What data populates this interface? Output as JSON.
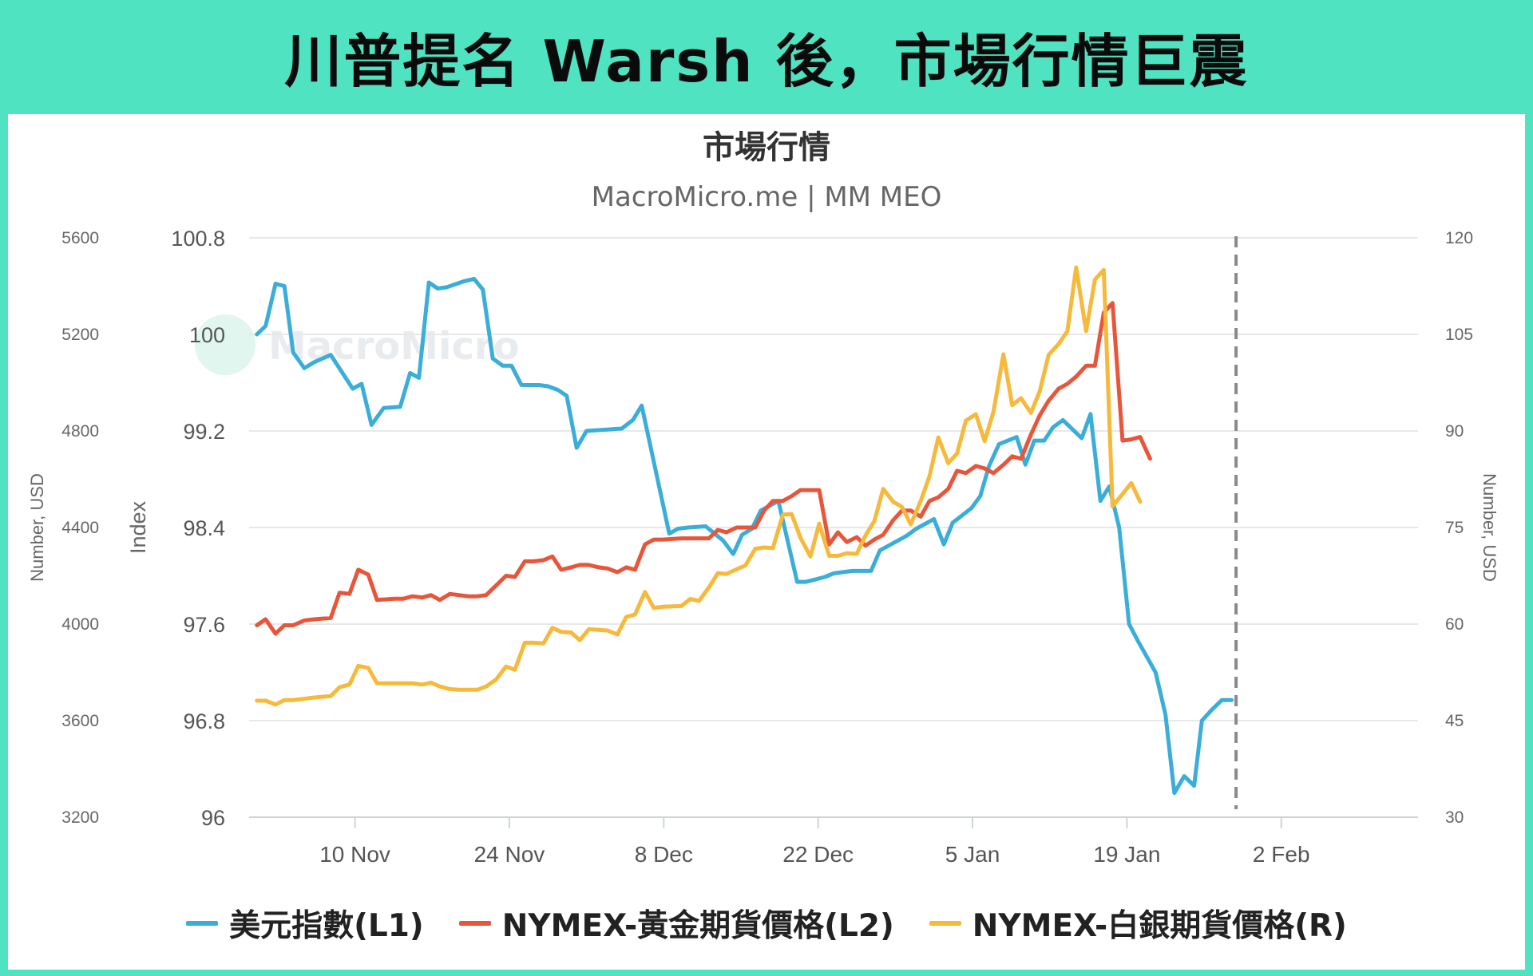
{
  "page_title": "川普提名 Warsh 後，市場行情巨震",
  "chart_data": {
    "type": "line",
    "title": "市場行情",
    "subtitle": "MacroMicro.me | MM MEO",
    "watermark": "MacroMicro",
    "axes": {
      "left_outer": {
        "label": "Number, USD",
        "range": [
          3200,
          5600
        ],
        "ticks": [
          "5600",
          "5200",
          "4800",
          "4400",
          "4000",
          "3600",
          "3200"
        ]
      },
      "left_inner": {
        "label": "Index",
        "range": [
          96,
          100.8
        ],
        "ticks": [
          "100.8",
          "100",
          "99.2",
          "98.4",
          "97.6",
          "96.8",
          "96"
        ]
      },
      "right": {
        "label": "Number, USD",
        "range": [
          30,
          120
        ],
        "ticks": [
          "120",
          "105",
          "90",
          "75",
          "60",
          "45",
          "30"
        ]
      }
    },
    "x_range": [
      -8.6,
      97.4
    ],
    "x_ticks": [
      {
        "label": "10 Nov",
        "d": 1
      },
      {
        "label": "24 Nov",
        "d": 15
      },
      {
        "label": "8 Dec",
        "d": 29
      },
      {
        "label": "22 Dec",
        "d": 43
      },
      {
        "label": "5 Jan",
        "d": 57
      },
      {
        "label": "19 Jan",
        "d": 71
      },
      {
        "label": "2 Feb",
        "d": 85
      }
    ],
    "event_marker_d": 80.9,
    "series": [
      {
        "name": "美元指數(L1)",
        "axis": "left_inner",
        "color": "#3aaed8",
        "points": [
          [
            -7.9,
            100.0
          ],
          [
            -7.1,
            100.07
          ],
          [
            -6.2,
            100.42
          ],
          [
            -5.4,
            100.4
          ],
          [
            -4.6,
            99.85
          ],
          [
            -3.6,
            99.72
          ],
          [
            -2.7,
            99.77
          ],
          [
            -1.2,
            99.83
          ],
          [
            0.8,
            99.55
          ],
          [
            1.6,
            99.59
          ],
          [
            2.5,
            99.25
          ],
          [
            3.6,
            99.39
          ],
          [
            5.1,
            99.4
          ],
          [
            6.0,
            99.68
          ],
          [
            6.8,
            99.64
          ],
          [
            7.7,
            100.43
          ],
          [
            8.5,
            100.38
          ],
          [
            9.3,
            100.39
          ],
          [
            10.9,
            100.44
          ],
          [
            11.8,
            100.46
          ],
          [
            12.6,
            100.37
          ],
          [
            13.5,
            99.8
          ],
          [
            14.4,
            99.74
          ],
          [
            15.2,
            99.74
          ],
          [
            16.1,
            99.58
          ],
          [
            17.7,
            99.58
          ],
          [
            18.5,
            99.57
          ],
          [
            19.4,
            99.54
          ],
          [
            20.2,
            99.49
          ],
          [
            21.1,
            99.06
          ],
          [
            22.0,
            99.2
          ],
          [
            23.6,
            99.21
          ],
          [
            25.2,
            99.22
          ],
          [
            26.2,
            99.29
          ],
          [
            27.0,
            99.41
          ],
          [
            29.5,
            98.35
          ],
          [
            30.3,
            98.39
          ],
          [
            31.2,
            98.4
          ],
          [
            32.8,
            98.41
          ],
          [
            34.4,
            98.29
          ],
          [
            35.3,
            98.18
          ],
          [
            36.1,
            98.34
          ],
          [
            37.0,
            98.39
          ],
          [
            37.8,
            98.54
          ],
          [
            39.4,
            98.62
          ],
          [
            41.1,
            97.95
          ],
          [
            41.9,
            97.95
          ],
          [
            43.6,
            97.99
          ],
          [
            44.4,
            98.02
          ],
          [
            45.2,
            98.03
          ],
          [
            46.1,
            98.04
          ],
          [
            47.8,
            98.04
          ],
          [
            48.6,
            98.21
          ],
          [
            49.4,
            98.25
          ],
          [
            51.0,
            98.33
          ],
          [
            51.9,
            98.39
          ],
          [
            53.5,
            98.47
          ],
          [
            54.4,
            98.26
          ],
          [
            55.2,
            98.44
          ],
          [
            56.9,
            98.56
          ],
          [
            57.7,
            98.66
          ],
          [
            58.5,
            98.91
          ],
          [
            59.4,
            99.09
          ],
          [
            61.0,
            99.15
          ],
          [
            61.8,
            98.92
          ],
          [
            62.6,
            99.12
          ],
          [
            63.5,
            99.12
          ],
          [
            64.3,
            99.23
          ],
          [
            65.2,
            99.29
          ],
          [
            66.9,
            99.14
          ],
          [
            67.7,
            99.34
          ],
          [
            68.6,
            98.62
          ],
          [
            69.4,
            98.74
          ],
          [
            70.3,
            98.4
          ],
          [
            71.2,
            97.6
          ],
          [
            72.0,
            97.46
          ],
          [
            73.6,
            97.2
          ],
          [
            74.5,
            96.85
          ],
          [
            75.3,
            96.2
          ],
          [
            76.2,
            96.34
          ],
          [
            77.1,
            96.26
          ],
          [
            77.8,
            96.8
          ],
          [
            78.7,
            96.89
          ],
          [
            79.6,
            96.97
          ],
          [
            80.5,
            96.97
          ]
        ]
      },
      {
        "name": "NYMEX-黃金期貨價格(L2)",
        "axis": "left_outer",
        "color": "#e8553a",
        "points": [
          [
            -7.9,
            3995
          ],
          [
            -7.1,
            4020
          ],
          [
            -6.2,
            3960
          ],
          [
            -5.4,
            3995
          ],
          [
            -4.6,
            3995
          ],
          [
            -3.6,
            4015
          ],
          [
            -2.7,
            4020
          ],
          [
            -1.2,
            4025
          ],
          [
            -0.4,
            4130
          ],
          [
            0.5,
            4125
          ],
          [
            1.3,
            4225
          ],
          [
            2.2,
            4205
          ],
          [
            3.0,
            4100
          ],
          [
            4.6,
            4105
          ],
          [
            5.4,
            4105
          ],
          [
            6.2,
            4115
          ],
          [
            7.1,
            4110
          ],
          [
            7.9,
            4120
          ],
          [
            8.7,
            4100
          ],
          [
            9.6,
            4125
          ],
          [
            10.4,
            4120
          ],
          [
            11.3,
            4115
          ],
          [
            12.1,
            4115
          ],
          [
            12.9,
            4120
          ],
          [
            13.8,
            4160
          ],
          [
            14.7,
            4200
          ],
          [
            15.5,
            4195
          ],
          [
            16.4,
            4260
          ],
          [
            17.2,
            4260
          ],
          [
            18.1,
            4265
          ],
          [
            18.9,
            4280
          ],
          [
            19.7,
            4225
          ],
          [
            20.6,
            4235
          ],
          [
            21.4,
            4245
          ],
          [
            22.2,
            4245
          ],
          [
            23.1,
            4235
          ],
          [
            23.9,
            4230
          ],
          [
            24.8,
            4215
          ],
          [
            25.6,
            4235
          ],
          [
            26.4,
            4225
          ],
          [
            27.3,
            4330
          ],
          [
            28.1,
            4350
          ],
          [
            28.9,
            4350
          ],
          [
            30.6,
            4355
          ],
          [
            31.4,
            4355
          ],
          [
            32.2,
            4355
          ],
          [
            33.1,
            4355
          ],
          [
            33.9,
            4390
          ],
          [
            34.7,
            4380
          ],
          [
            35.6,
            4400
          ],
          [
            36.4,
            4400
          ],
          [
            37.3,
            4400
          ],
          [
            38.1,
            4470
          ],
          [
            38.9,
            4510
          ],
          [
            39.8,
            4510
          ],
          [
            40.6,
            4530
          ],
          [
            41.4,
            4555
          ],
          [
            42.3,
            4555
          ],
          [
            43.1,
            4555
          ],
          [
            44.0,
            4330
          ],
          [
            44.8,
            4380
          ],
          [
            45.6,
            4340
          ],
          [
            46.5,
            4360
          ],
          [
            47.3,
            4325
          ],
          [
            48.1,
            4350
          ],
          [
            48.9,
            4370
          ],
          [
            49.8,
            4430
          ],
          [
            50.6,
            4470
          ],
          [
            51.4,
            4470
          ],
          [
            52.3,
            4445
          ],
          [
            53.1,
            4510
          ],
          [
            53.9,
            4525
          ],
          [
            54.8,
            4560
          ],
          [
            55.6,
            4635
          ],
          [
            56.4,
            4625
          ],
          [
            57.3,
            4655
          ],
          [
            58.1,
            4645
          ],
          [
            58.9,
            4625
          ],
          [
            59.8,
            4660
          ],
          [
            60.6,
            4695
          ],
          [
            61.4,
            4685
          ],
          [
            62.3,
            4785
          ],
          [
            63.1,
            4865
          ],
          [
            63.9,
            4925
          ],
          [
            64.8,
            4975
          ],
          [
            65.6,
            4995
          ],
          [
            66.4,
            5025
          ],
          [
            67.3,
            5070
          ],
          [
            68.1,
            5070
          ],
          [
            68.9,
            5290
          ],
          [
            69.7,
            5330
          ],
          [
            70.6,
            4760
          ],
          [
            71.4,
            4765
          ],
          [
            72.2,
            4775
          ],
          [
            73.1,
            4685
          ]
        ]
      },
      {
        "name": "NYMEX-白銀期貨價格(R)",
        "axis": "right",
        "color": "#f6b93b",
        "points": [
          [
            -7.9,
            48.1
          ],
          [
            -7.1,
            48.1
          ],
          [
            -6.2,
            47.5
          ],
          [
            -5.4,
            48.2
          ],
          [
            -4.6,
            48.2
          ],
          [
            -3.6,
            48.4
          ],
          [
            -2.7,
            48.6
          ],
          [
            -1.2,
            48.8
          ],
          [
            -0.4,
            50.2
          ],
          [
            0.5,
            50.6
          ],
          [
            1.3,
            53.5
          ],
          [
            2.2,
            53.2
          ],
          [
            3.0,
            50.8
          ],
          [
            4.6,
            50.8
          ],
          [
            5.4,
            50.8
          ],
          [
            6.2,
            50.8
          ],
          [
            7.1,
            50.6
          ],
          [
            7.9,
            50.9
          ],
          [
            8.7,
            50.3
          ],
          [
            9.6,
            49.9
          ],
          [
            10.4,
            49.8
          ],
          [
            11.3,
            49.8
          ],
          [
            12.1,
            49.8
          ],
          [
            12.9,
            50.3
          ],
          [
            13.8,
            51.4
          ],
          [
            14.7,
            53.4
          ],
          [
            15.5,
            52.9
          ],
          [
            16.4,
            57.1
          ],
          [
            17.2,
            57.1
          ],
          [
            18.1,
            57.0
          ],
          [
            18.9,
            59.4
          ],
          [
            19.7,
            58.8
          ],
          [
            20.6,
            58.7
          ],
          [
            21.4,
            57.5
          ],
          [
            22.2,
            59.2
          ],
          [
            23.1,
            59.1
          ],
          [
            23.9,
            59.0
          ],
          [
            24.8,
            58.4
          ],
          [
            25.6,
            61.1
          ],
          [
            26.4,
            61.5
          ],
          [
            27.3,
            65.0
          ],
          [
            28.1,
            62.5
          ],
          [
            28.9,
            62.7
          ],
          [
            30.6,
            62.8
          ],
          [
            31.4,
            63.9
          ],
          [
            32.2,
            63.6
          ],
          [
            33.1,
            65.7
          ],
          [
            33.9,
            67.9
          ],
          [
            34.7,
            67.8
          ],
          [
            35.6,
            68.5
          ],
          [
            36.4,
            69.1
          ],
          [
            37.3,
            71.7
          ],
          [
            38.1,
            71.9
          ],
          [
            38.9,
            71.8
          ],
          [
            39.8,
            77.0
          ],
          [
            40.6,
            77.1
          ],
          [
            41.4,
            73.4
          ],
          [
            42.3,
            70.5
          ],
          [
            43.1,
            75.6
          ],
          [
            44.0,
            70.6
          ],
          [
            44.8,
            70.6
          ],
          [
            45.6,
            71.0
          ],
          [
            46.5,
            70.9
          ],
          [
            47.3,
            73.8
          ],
          [
            48.1,
            76.0
          ],
          [
            48.9,
            81.0
          ],
          [
            49.8,
            79.0
          ],
          [
            50.6,
            78.2
          ],
          [
            51.4,
            75.5
          ],
          [
            52.3,
            79.1
          ],
          [
            53.1,
            83.0
          ],
          [
            53.9,
            89.0
          ],
          [
            54.8,
            85.0
          ],
          [
            55.6,
            86.5
          ],
          [
            56.4,
            91.6
          ],
          [
            57.3,
            92.6
          ],
          [
            58.1,
            88.4
          ],
          [
            58.9,
            93.0
          ],
          [
            59.8,
            101.9
          ],
          [
            60.6,
            94.0
          ],
          [
            61.4,
            95.1
          ],
          [
            62.3,
            92.8
          ],
          [
            63.1,
            96.2
          ],
          [
            63.9,
            101.8
          ],
          [
            64.8,
            103.5
          ],
          [
            65.6,
            105.5
          ],
          [
            66.4,
            115.4
          ],
          [
            67.3,
            105.5
          ],
          [
            68.1,
            113.5
          ],
          [
            68.9,
            115.0
          ],
          [
            69.7,
            78.3
          ],
          [
            70.6,
            80.2
          ],
          [
            71.4,
            81.9
          ],
          [
            72.2,
            79.0
          ]
        ]
      }
    ],
    "legend_position": "bottom"
  }
}
